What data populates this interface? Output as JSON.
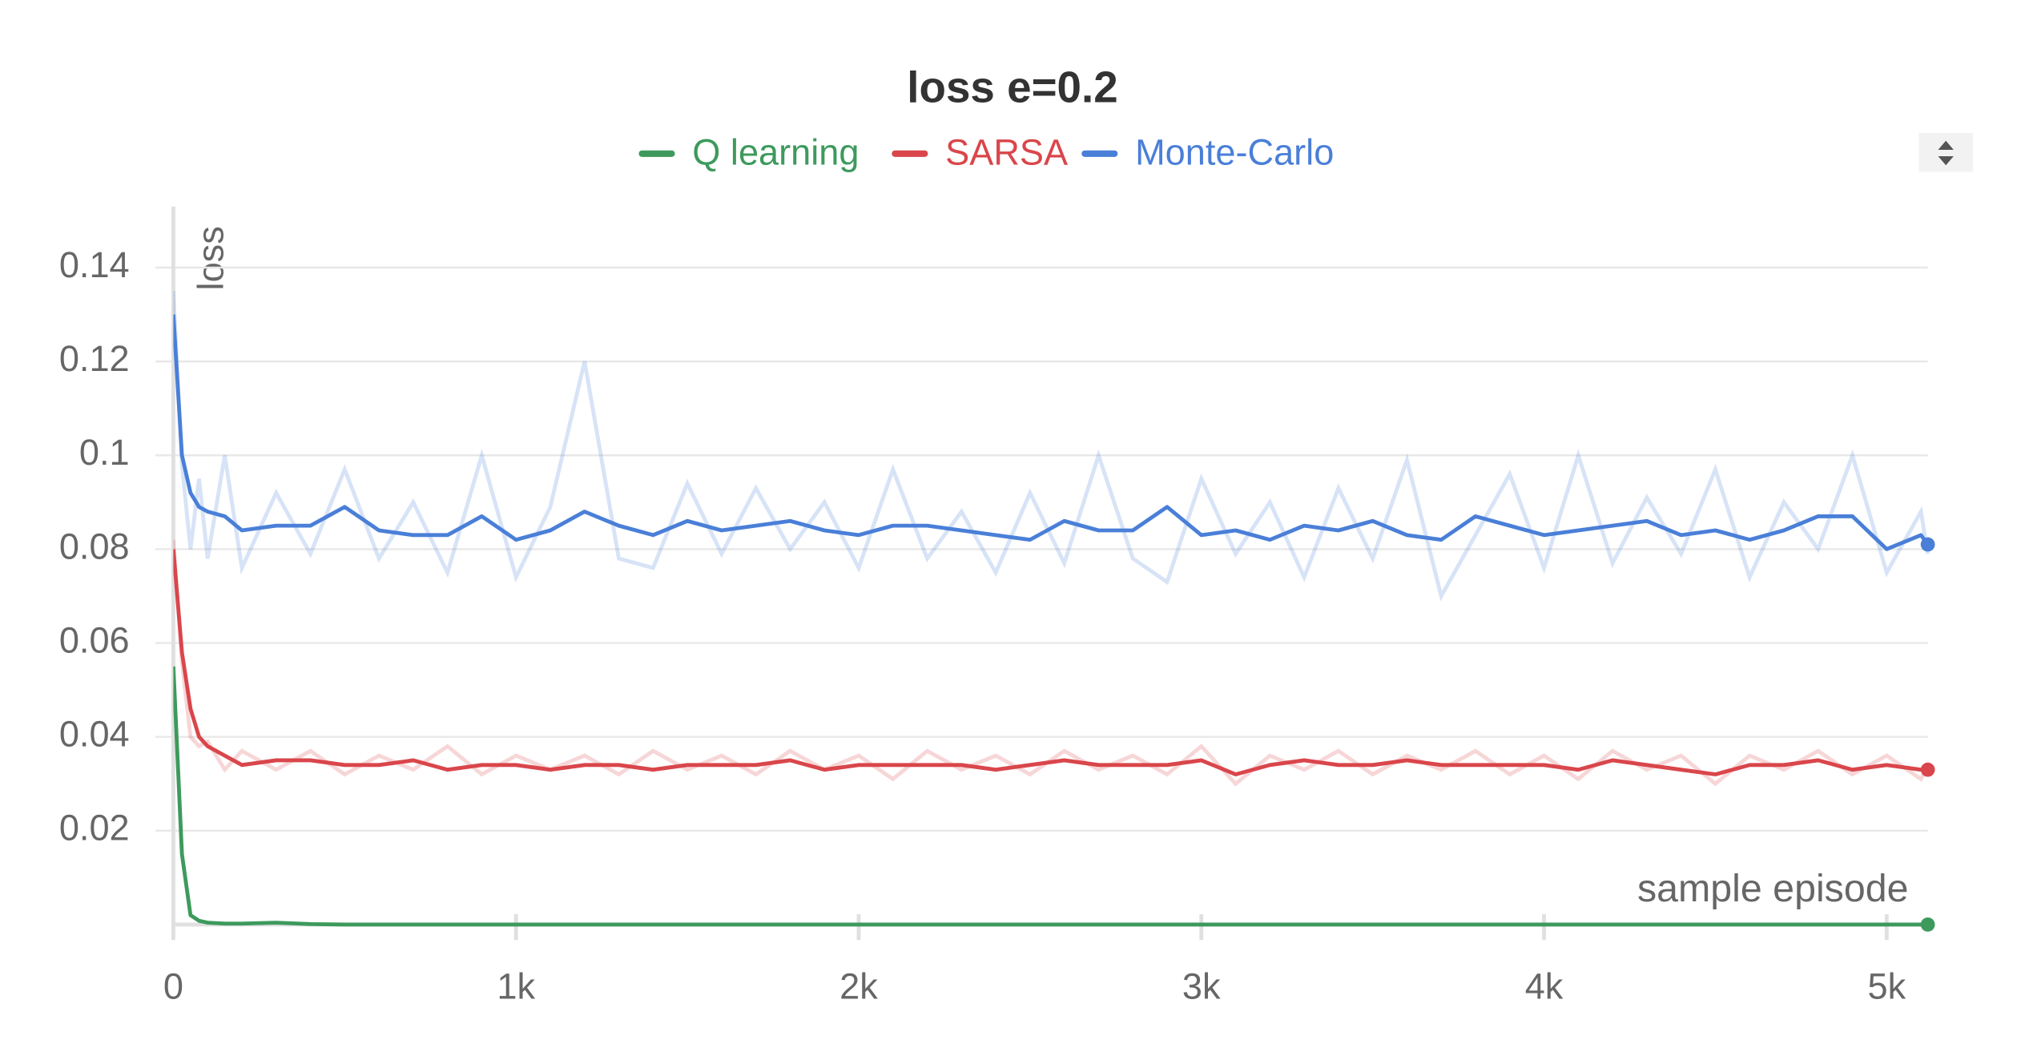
{
  "chart_data": {
    "type": "line",
    "title": "loss e=0.2",
    "y_label": "loss",
    "x_label": "sample episode",
    "x": [
      0,
      25,
      50,
      75,
      100,
      150,
      200,
      300,
      400,
      500,
      600,
      700,
      800,
      900,
      1000,
      1100,
      1200,
      1300,
      1400,
      1500,
      1600,
      1700,
      1800,
      1900,
      2000,
      2100,
      2200,
      2300,
      2400,
      2500,
      2600,
      2700,
      2800,
      2900,
      3000,
      3100,
      3200,
      3300,
      3400,
      3500,
      3600,
      3700,
      3800,
      3900,
      4000,
      4100,
      4200,
      4300,
      4400,
      4500,
      4600,
      4700,
      4800,
      4900,
      5000,
      5100,
      5120
    ],
    "xlim": [
      0,
      5120
    ],
    "xticks": [
      0,
      {
        "value": 1000,
        "label": "1k"
      },
      {
        "value": 2000,
        "label": "2k"
      },
      {
        "value": 3000,
        "label": "3k"
      },
      {
        "value": 4000,
        "label": "4k"
      },
      {
        "value": 5000,
        "label": "5k"
      }
    ],
    "ylim": [
      0,
      0.153
    ],
    "yticks": [
      0.02,
      0.04,
      0.06,
      0.08,
      0.1,
      0.12,
      0.14
    ],
    "grid": true,
    "series": [
      {
        "name": "Q learning",
        "color": "#3d9a5c",
        "values": [
          0.055,
          0.015,
          0.002,
          0.0008,
          0.0004,
          0.0002,
          0.0002,
          0.0004,
          0.0001,
          0,
          0,
          0,
          0,
          0,
          0,
          0,
          0,
          0,
          0,
          0,
          0,
          0,
          0,
          0,
          0,
          0,
          0,
          0,
          0,
          0,
          0,
          0,
          0,
          0,
          0,
          0,
          0,
          0,
          0,
          0,
          0,
          0,
          0,
          0,
          0,
          0,
          0,
          0,
          0,
          0,
          0,
          0,
          0,
          0,
          0,
          0,
          0
        ]
      },
      {
        "name": "SARSA",
        "color": "#d9464b",
        "values": [
          0.08,
          0.058,
          0.046,
          0.04,
          0.038,
          0.036,
          0.034,
          0.035,
          0.035,
          0.034,
          0.034,
          0.035,
          0.033,
          0.034,
          0.034,
          0.033,
          0.034,
          0.034,
          0.033,
          0.034,
          0.034,
          0.034,
          0.035,
          0.033,
          0.034,
          0.034,
          0.034,
          0.034,
          0.033,
          0.034,
          0.035,
          0.034,
          0.034,
          0.034,
          0.035,
          0.032,
          0.034,
          0.035,
          0.034,
          0.034,
          0.035,
          0.034,
          0.034,
          0.034,
          0.034,
          0.033,
          0.035,
          0.034,
          0.033,
          0.032,
          0.034,
          0.034,
          0.035,
          0.033,
          0.034,
          0.033,
          0.033
        ],
        "raw": [
          0.082,
          0.056,
          0.04,
          0.038,
          0.039,
          0.033,
          0.037,
          0.033,
          0.037,
          0.032,
          0.036,
          0.033,
          0.038,
          0.032,
          0.036,
          0.033,
          0.036,
          0.032,
          0.037,
          0.033,
          0.036,
          0.032,
          0.037,
          0.033,
          0.036,
          0.031,
          0.037,
          0.033,
          0.036,
          0.032,
          0.037,
          0.033,
          0.036,
          0.032,
          0.038,
          0.03,
          0.036,
          0.033,
          0.037,
          0.032,
          0.036,
          0.033,
          0.037,
          0.032,
          0.036,
          0.031,
          0.037,
          0.033,
          0.036,
          0.03,
          0.036,
          0.033,
          0.037,
          0.032,
          0.036,
          0.031,
          0.034
        ]
      },
      {
        "name": "Monte-Carlo",
        "color": "#4a7fd8",
        "values": [
          0.13,
          0.1,
          0.092,
          0.089,
          0.088,
          0.087,
          0.084,
          0.085,
          0.085,
          0.089,
          0.084,
          0.083,
          0.083,
          0.087,
          0.082,
          0.084,
          0.088,
          0.085,
          0.083,
          0.086,
          0.084,
          0.085,
          0.086,
          0.084,
          0.083,
          0.085,
          0.085,
          0.084,
          0.083,
          0.082,
          0.086,
          0.084,
          0.084,
          0.089,
          0.083,
          0.084,
          0.082,
          0.085,
          0.084,
          0.086,
          0.083,
          0.082,
          0.087,
          0.085,
          0.083,
          0.084,
          0.085,
          0.086,
          0.083,
          0.084,
          0.082,
          0.084,
          0.087,
          0.087,
          0.08,
          0.083,
          0.081
        ],
        "raw": [
          0.135,
          0.098,
          0.08,
          0.095,
          0.078,
          0.1,
          0.076,
          0.092,
          0.079,
          0.097,
          0.078,
          0.09,
          0.075,
          0.1,
          0.074,
          0.089,
          0.12,
          0.078,
          0.076,
          0.094,
          0.079,
          0.093,
          0.08,
          0.09,
          0.076,
          0.097,
          0.078,
          0.088,
          0.075,
          0.092,
          0.077,
          0.1,
          0.078,
          0.073,
          0.095,
          0.079,
          0.09,
          0.074,
          0.093,
          0.078,
          0.099,
          0.07,
          0.083,
          0.096,
          0.076,
          0.1,
          0.077,
          0.091,
          0.079,
          0.097,
          0.074,
          0.09,
          0.08,
          0.1,
          0.075,
          0.088,
          0.079
        ]
      }
    ]
  }
}
